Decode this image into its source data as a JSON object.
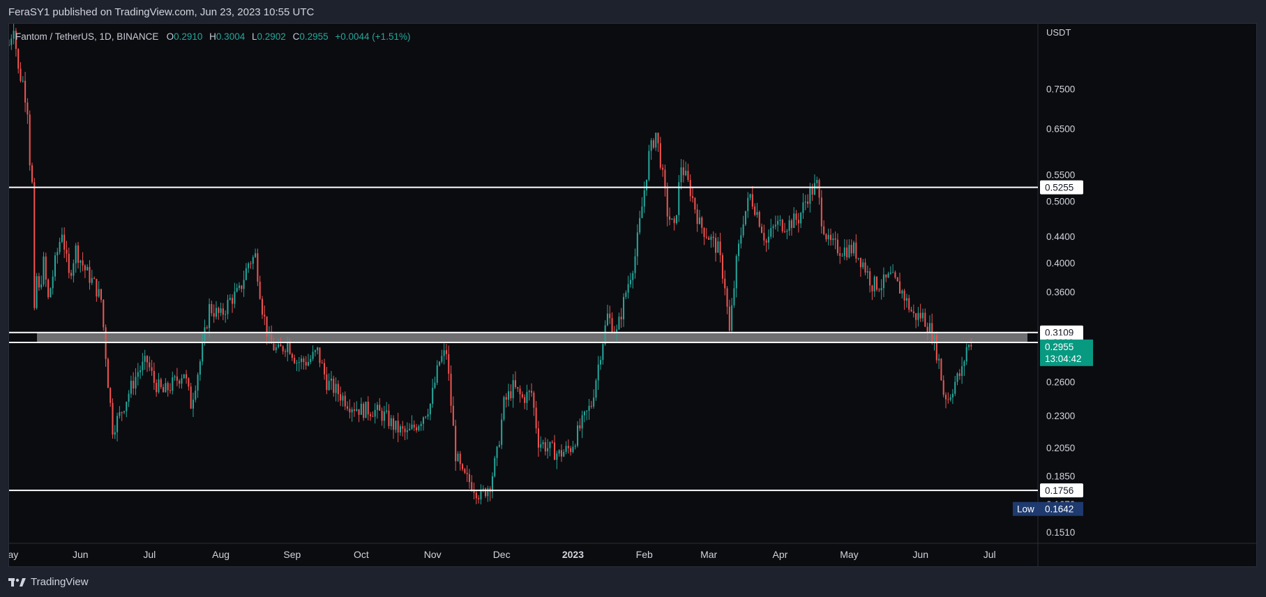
{
  "header": {
    "published_text": "FeraSY1 published on TradingView.com, Jun 23, 2023 10:55 UTC"
  },
  "legend": {
    "symbol": "Fantom / TetherUS, 1D, BINANCE",
    "open_label": "O",
    "open": "0.2910",
    "high_label": "H",
    "high": "0.3004",
    "low_label": "L",
    "low": "0.2902",
    "close_label": "C",
    "close": "0.2955",
    "change": "+0.0044 (+1.51%)"
  },
  "footer": {
    "brand": "TradingView"
  },
  "colors": {
    "up": "#26a69a",
    "down": "#ef5350",
    "background": "#0b0c10",
    "axis_text": "#d1d4dc",
    "level_line": "#ffffff",
    "zone": "#6f6f72",
    "price_badge": "#089981",
    "low_badge": "#1e3a6e"
  },
  "chart_data": {
    "type": "candlestick",
    "title": "Fantom / TetherUS, 1D, BINANCE",
    "currency": "USDT",
    "y_scale": "log",
    "ylim": [
      0.145,
      0.95
    ],
    "y_ticks": [
      0.75,
      0.65,
      0.55,
      0.5,
      0.44,
      0.4,
      0.36,
      0.26,
      0.23,
      0.205,
      0.185,
      0.151
    ],
    "x_ticks": [
      "May",
      "Jun",
      "Jul",
      "Aug",
      "Sep",
      "Oct",
      "Nov",
      "Dec",
      "2023",
      "Feb",
      "Mar",
      "Apr",
      "May",
      "Jun",
      "Jul"
    ],
    "x_range": [
      "2022-05-01",
      "2023-07-22"
    ],
    "x_tick_dates": [
      "2022-05-01",
      "2022-06-01",
      "2022-07-01",
      "2022-08-01",
      "2022-09-01",
      "2022-10-01",
      "2022-11-01",
      "2022-12-01",
      "2023-01-01",
      "2023-02-01",
      "2023-03-01",
      "2023-04-01",
      "2023-05-01",
      "2023-06-01",
      "2023-07-01"
    ],
    "bold_tick": "2023",
    "horizontal_levels": [
      {
        "label": "0.5255",
        "value": 0.5255
      },
      {
        "label": "0.3109",
        "value": 0.3109
      },
      {
        "label": "0.2999",
        "value": 0.2999
      },
      {
        "label": "0.1756",
        "value": 0.1756
      }
    ],
    "zone": {
      "from": 0.2999,
      "to": 0.3109
    },
    "last_price": {
      "value": 0.2955,
      "label": "0.2955",
      "countdown": "13:04:42"
    },
    "low_marker": {
      "text": "Low",
      "value": 0.1642,
      "label": "0.1642"
    },
    "cutoff_tick": {
      "value": 0.167,
      "label": "0.1670"
    },
    "path": [
      [
        "2022-05-01",
        0.88
      ],
      [
        "2022-05-03",
        0.95
      ],
      [
        "2022-05-05",
        0.8
      ],
      [
        "2022-05-07",
        0.77
      ],
      [
        "2022-05-09",
        0.7
      ],
      [
        "2022-05-10",
        0.58
      ],
      [
        "2022-05-11",
        0.53
      ],
      [
        "2022-05-12",
        0.33
      ],
      [
        "2022-05-13",
        0.38
      ],
      [
        "2022-05-14",
        0.36
      ],
      [
        "2022-05-16",
        0.4
      ],
      [
        "2022-05-18",
        0.35
      ],
      [
        "2022-05-21",
        0.4
      ],
      [
        "2022-05-24",
        0.45
      ],
      [
        "2022-05-27",
        0.38
      ],
      [
        "2022-05-30",
        0.42
      ],
      [
        "2022-06-03",
        0.39
      ],
      [
        "2022-06-07",
        0.37
      ],
      [
        "2022-06-10",
        0.35
      ],
      [
        "2022-06-13",
        0.26
      ],
      [
        "2022-06-15",
        0.22
      ],
      [
        "2022-06-18",
        0.23
      ],
      [
        "2022-06-22",
        0.25
      ],
      [
        "2022-06-26",
        0.27
      ],
      [
        "2022-06-30",
        0.28
      ],
      [
        "2022-07-03",
        0.26
      ],
      [
        "2022-07-07",
        0.25
      ],
      [
        "2022-07-12",
        0.26
      ],
      [
        "2022-07-16",
        0.27
      ],
      [
        "2022-07-19",
        0.24
      ],
      [
        "2022-07-23",
        0.28
      ],
      [
        "2022-07-27",
        0.34
      ],
      [
        "2022-08-01",
        0.33
      ],
      [
        "2022-08-05",
        0.35
      ],
      [
        "2022-08-09",
        0.36
      ],
      [
        "2022-08-13",
        0.4
      ],
      [
        "2022-08-16",
        0.41
      ],
      [
        "2022-08-19",
        0.34
      ],
      [
        "2022-08-22",
        0.3
      ],
      [
        "2022-08-26",
        0.29
      ],
      [
        "2022-08-30",
        0.3
      ],
      [
        "2022-09-03",
        0.28
      ],
      [
        "2022-09-08",
        0.28
      ],
      [
        "2022-09-12",
        0.29
      ],
      [
        "2022-09-16",
        0.26
      ],
      [
        "2022-09-21",
        0.25
      ],
      [
        "2022-09-26",
        0.24
      ],
      [
        "2022-10-01",
        0.235
      ],
      [
        "2022-10-06",
        0.235
      ],
      [
        "2022-10-11",
        0.23
      ],
      [
        "2022-10-16",
        0.22
      ],
      [
        "2022-10-21",
        0.215
      ],
      [
        "2022-10-26",
        0.225
      ],
      [
        "2022-10-31",
        0.24
      ],
      [
        "2022-11-04",
        0.28
      ],
      [
        "2022-11-07",
        0.29
      ],
      [
        "2022-11-09",
        0.24
      ],
      [
        "2022-11-11",
        0.2
      ],
      [
        "2022-11-14",
        0.185
      ],
      [
        "2022-11-18",
        0.18
      ],
      [
        "2022-11-22",
        0.172
      ],
      [
        "2022-11-26",
        0.18
      ],
      [
        "2022-11-29",
        0.2
      ],
      [
        "2022-12-02",
        0.24
      ],
      [
        "2022-12-06",
        0.255
      ],
      [
        "2022-12-10",
        0.245
      ],
      [
        "2022-12-14",
        0.25
      ],
      [
        "2022-12-17",
        0.21
      ],
      [
        "2022-12-21",
        0.205
      ],
      [
        "2022-12-26",
        0.2
      ],
      [
        "2022-12-31",
        0.205
      ],
      [
        "2023-01-04",
        0.22
      ],
      [
        "2023-01-09",
        0.24
      ],
      [
        "2023-01-13",
        0.29
      ],
      [
        "2023-01-16",
        0.33
      ],
      [
        "2023-01-20",
        0.31
      ],
      [
        "2023-01-24",
        0.36
      ],
      [
        "2023-01-28",
        0.41
      ],
      [
        "2023-01-31",
        0.49
      ],
      [
        "2023-02-03",
        0.59
      ],
      [
        "2023-02-06",
        0.64
      ],
      [
        "2023-02-08",
        0.58
      ],
      [
        "2023-02-11",
        0.48
      ],
      [
        "2023-02-14",
        0.45
      ],
      [
        "2023-02-17",
        0.57
      ],
      [
        "2023-02-21",
        0.52
      ],
      [
        "2023-02-25",
        0.46
      ],
      [
        "2023-03-01",
        0.44
      ],
      [
        "2023-03-05",
        0.42
      ],
      [
        "2023-03-08",
        0.37
      ],
      [
        "2023-03-10",
        0.31
      ],
      [
        "2023-03-13",
        0.4
      ],
      [
        "2023-03-16",
        0.47
      ],
      [
        "2023-03-19",
        0.51
      ],
      [
        "2023-03-22",
        0.48
      ],
      [
        "2023-03-26",
        0.43
      ],
      [
        "2023-03-30",
        0.46
      ],
      [
        "2023-04-04",
        0.46
      ],
      [
        "2023-04-09",
        0.47
      ],
      [
        "2023-04-13",
        0.51
      ],
      [
        "2023-04-17",
        0.53
      ],
      [
        "2023-04-19",
        0.47
      ],
      [
        "2023-04-22",
        0.43
      ],
      [
        "2023-04-27",
        0.42
      ],
      [
        "2023-05-03",
        0.42
      ],
      [
        "2023-05-07",
        0.4
      ],
      [
        "2023-05-11",
        0.37
      ],
      [
        "2023-05-15",
        0.37
      ],
      [
        "2023-05-19",
        0.38
      ],
      [
        "2023-05-24",
        0.36
      ],
      [
        "2023-05-29",
        0.33
      ],
      [
        "2023-06-02",
        0.33
      ],
      [
        "2023-06-06",
        0.31
      ],
      [
        "2023-06-09",
        0.28
      ],
      [
        "2023-06-11",
        0.25
      ],
      [
        "2023-06-13",
        0.245
      ],
      [
        "2023-06-16",
        0.26
      ],
      [
        "2023-06-19",
        0.27
      ],
      [
        "2023-06-21",
        0.295
      ],
      [
        "2023-06-23",
        0.2955
      ]
    ]
  }
}
